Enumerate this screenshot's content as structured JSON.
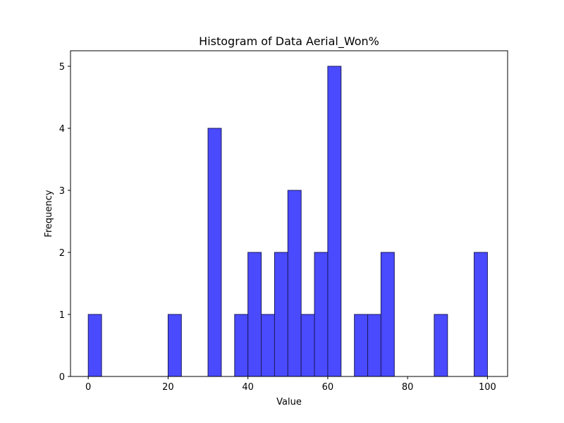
{
  "chart_data": {
    "type": "bar",
    "title": "Histogram of Data Aerial_Won%",
    "xlabel": "Value",
    "ylabel": "Frequency",
    "xlim": [
      -4.45,
      105.05
    ],
    "ylim": [
      0,
      5.25
    ],
    "xticks": [
      0,
      20,
      40,
      60,
      80,
      100
    ],
    "yticks": [
      0,
      1,
      2,
      3,
      4,
      5
    ],
    "grid": false,
    "bar_color": "#4a4aff",
    "edge_color": "#1a1a5a",
    "bins": [
      {
        "x0": 0.0,
        "x1": 3.33,
        "value": 1
      },
      {
        "x0": 20.0,
        "x1": 23.33,
        "value": 1
      },
      {
        "x0": 30.0,
        "x1": 33.33,
        "value": 4
      },
      {
        "x0": 36.67,
        "x1": 40.0,
        "value": 1
      },
      {
        "x0": 40.0,
        "x1": 43.33,
        "value": 2
      },
      {
        "x0": 43.33,
        "x1": 46.67,
        "value": 1
      },
      {
        "x0": 46.67,
        "x1": 50.0,
        "value": 2
      },
      {
        "x0": 50.0,
        "x1": 53.33,
        "value": 3
      },
      {
        "x0": 53.33,
        "x1": 56.67,
        "value": 1
      },
      {
        "x0": 56.67,
        "x1": 60.0,
        "value": 2
      },
      {
        "x0": 60.0,
        "x1": 63.33,
        "value": 5
      },
      {
        "x0": 66.67,
        "x1": 70.0,
        "value": 1
      },
      {
        "x0": 70.0,
        "x1": 73.33,
        "value": 1
      },
      {
        "x0": 73.33,
        "x1": 76.67,
        "value": 2
      },
      {
        "x0": 86.67,
        "x1": 90.0,
        "value": 1
      },
      {
        "x0": 96.67,
        "x1": 100.0,
        "value": 2
      }
    ]
  }
}
